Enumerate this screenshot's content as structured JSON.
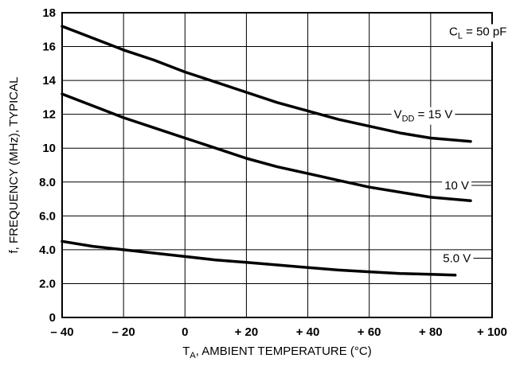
{
  "chart_data": {
    "type": "line",
    "xlabel": {
      "main": "T",
      "sub": "A",
      "rest": ", AMBIENT TEMPERATURE (°C)"
    },
    "ylabel": "f, FREQUENCY (MHz), TYPICAL",
    "xlim": [
      -40,
      100
    ],
    "ylim": [
      0,
      18
    ],
    "x_ticks": [
      -40,
      -20,
      0,
      20,
      40,
      60,
      80,
      100
    ],
    "x_tick_labels": [
      "– 40",
      "– 20",
      "0",
      "+ 20",
      "+ 40",
      "+ 60",
      "+ 80",
      "+ 100"
    ],
    "y_ticks": [
      0,
      2,
      4,
      6,
      8,
      10,
      12,
      14,
      16,
      18
    ],
    "y_tick_labels": [
      "0",
      "2.0",
      "4.0",
      "6.0",
      "8.0",
      "10",
      "12",
      "14",
      "16",
      "18"
    ],
    "grid": true,
    "condition": {
      "main": "C",
      "sub": "L",
      "rest": " = 50 pF"
    },
    "series": [
      {
        "label": {
          "main": "V",
          "sub": "DD",
          "rest": " = 15 V"
        },
        "x": [
          -40,
          -30,
          -20,
          -10,
          0,
          10,
          20,
          30,
          40,
          50,
          60,
          70,
          80,
          93
        ],
        "y": [
          17.2,
          16.5,
          15.8,
          15.2,
          14.5,
          13.9,
          13.3,
          12.7,
          12.2,
          11.7,
          11.3,
          10.9,
          10.6,
          10.4
        ]
      },
      {
        "label": {
          "main": "10 V",
          "sub": "",
          "rest": ""
        },
        "x": [
          -40,
          -30,
          -20,
          -10,
          0,
          10,
          20,
          30,
          40,
          50,
          60,
          70,
          80,
          93
        ],
        "y": [
          13.2,
          12.5,
          11.8,
          11.2,
          10.6,
          10.0,
          9.4,
          8.9,
          8.5,
          8.1,
          7.7,
          7.4,
          7.1,
          6.9
        ]
      },
      {
        "label": {
          "main": "5.0 V",
          "sub": "",
          "rest": ""
        },
        "x": [
          -40,
          -30,
          -20,
          -10,
          0,
          10,
          20,
          30,
          40,
          50,
          60,
          70,
          80,
          88
        ],
        "y": [
          4.5,
          4.2,
          4.0,
          3.8,
          3.6,
          3.4,
          3.25,
          3.1,
          2.95,
          2.8,
          2.7,
          2.6,
          2.55,
          2.5
        ]
      }
    ]
  }
}
